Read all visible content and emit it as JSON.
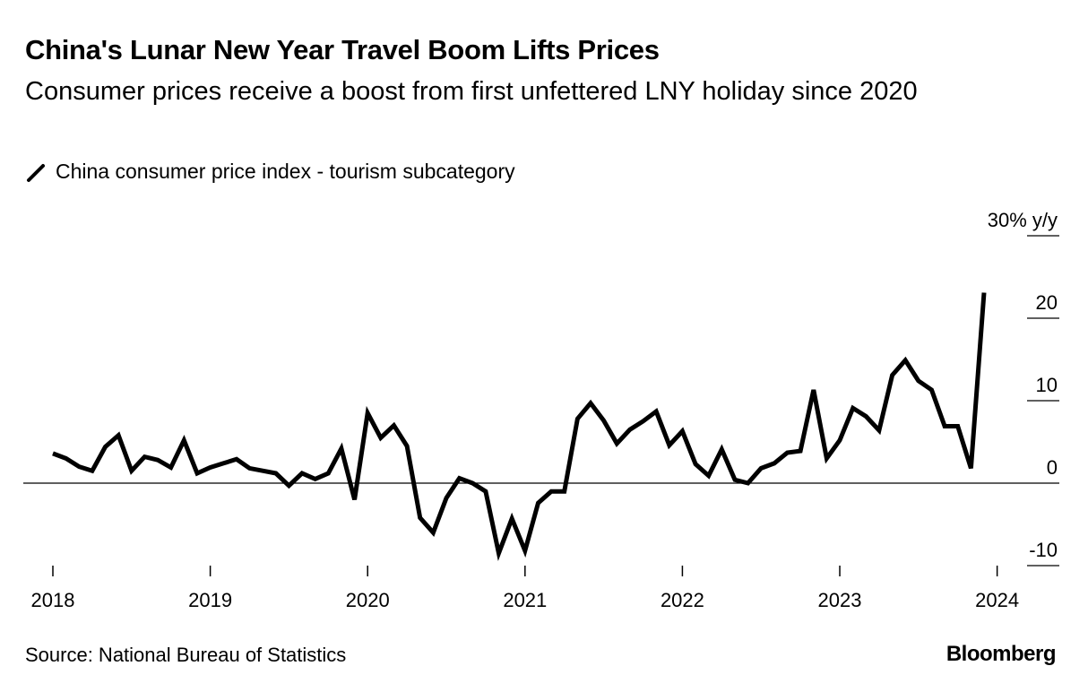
{
  "header": {
    "title": "China's Lunar New Year Travel Boom Lifts Prices",
    "subtitle": "Consumer prices receive a boost from first unfettered LNY holiday since 2020"
  },
  "footer": {
    "source": "Source: National Bureau of Statistics",
    "brand": "Bloomberg"
  },
  "chart_data": {
    "type": "line",
    "title": "China's Lunar New Year Travel Boom Lifts Prices",
    "subtitle": "Consumer prices receive a boost from first unfettered LNY holiday since 2020",
    "series": [
      {
        "name": "China consumer price index - tourism subcategory",
        "color": "#000000",
        "values": [
          3.6,
          3.0,
          2.0,
          1.5,
          4.4,
          5.8,
          1.5,
          3.2,
          2.8,
          1.9,
          5.2,
          1.2,
          1.9,
          2.4,
          2.9,
          1.8,
          1.5,
          1.2,
          -0.3,
          1.2,
          0.5,
          1.2,
          4.2,
          -2.0,
          8.5,
          5.5,
          7.0,
          4.5,
          -4.2,
          -6.0,
          -1.8,
          0.6,
          0.0,
          -1.0,
          -8.5,
          -4.3,
          -8.2,
          -2.4,
          -1.0,
          -1.0,
          7.8,
          9.7,
          7.6,
          4.8,
          6.5,
          7.5,
          8.7,
          4.6,
          6.3,
          2.3,
          0.9,
          4.1,
          0.4,
          0.0,
          1.8,
          2.4,
          3.7,
          3.9,
          11.3,
          3.0,
          5.2,
          9.1,
          8.1,
          6.4,
          13.1,
          14.9,
          12.4,
          11.3,
          6.9,
          6.9,
          1.8,
          23.1
        ]
      }
    ],
    "x_start": "2018-01",
    "x_end": "2024-02",
    "xticks": [
      "2018",
      "2019",
      "2020",
      "2021",
      "2022",
      "2023",
      "2024"
    ],
    "yticks": [
      "-10",
      "0",
      "10",
      "20",
      "30% y/y"
    ],
    "ylim": [
      -10,
      30
    ],
    "ylabel": "% y/y",
    "xlabel": "",
    "grid": false,
    "legend": "top-left"
  }
}
